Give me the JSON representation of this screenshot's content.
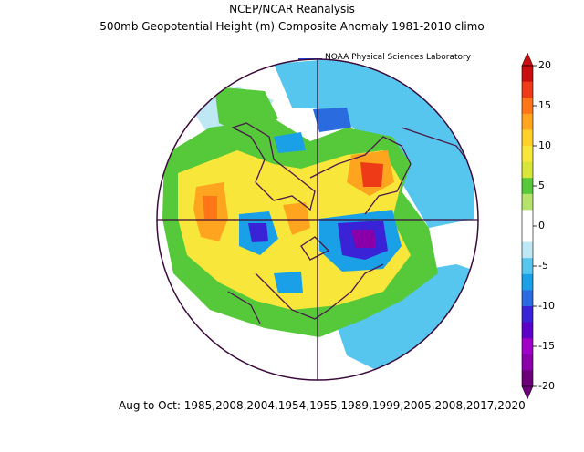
{
  "header": {
    "title": "NCEP/NCAR Reanalysis",
    "subtitle": "500mb Geopotential Height (m) Composite Anomaly 1981-2010 climo",
    "credit": "NOAA Physical Sciences Laboratory"
  },
  "caption": "Aug to Oct: 1985,2008,2004,1954,1955,1989,1999,2005,2008,2017,2020",
  "colorbar": {
    "ticks": [
      "20",
      "15",
      "10",
      "5",
      "0",
      "-5",
      "-10",
      "-15",
      "-20"
    ],
    "colors": [
      "#6b0078",
      "#8a00a8",
      "#a000c8",
      "#5d00c8",
      "#3a22d6",
      "#2a6be0",
      "#1aa0e6",
      "#57c6ee",
      "#bfe8f5",
      "#ffffff",
      "#ffffff",
      "#b5e36b",
      "#55c93a",
      "#d8e63a",
      "#f8e63a",
      "#ffd02a",
      "#ffa41f",
      "#ff7618",
      "#ee3a16",
      "#c80e0e"
    ]
  }
}
